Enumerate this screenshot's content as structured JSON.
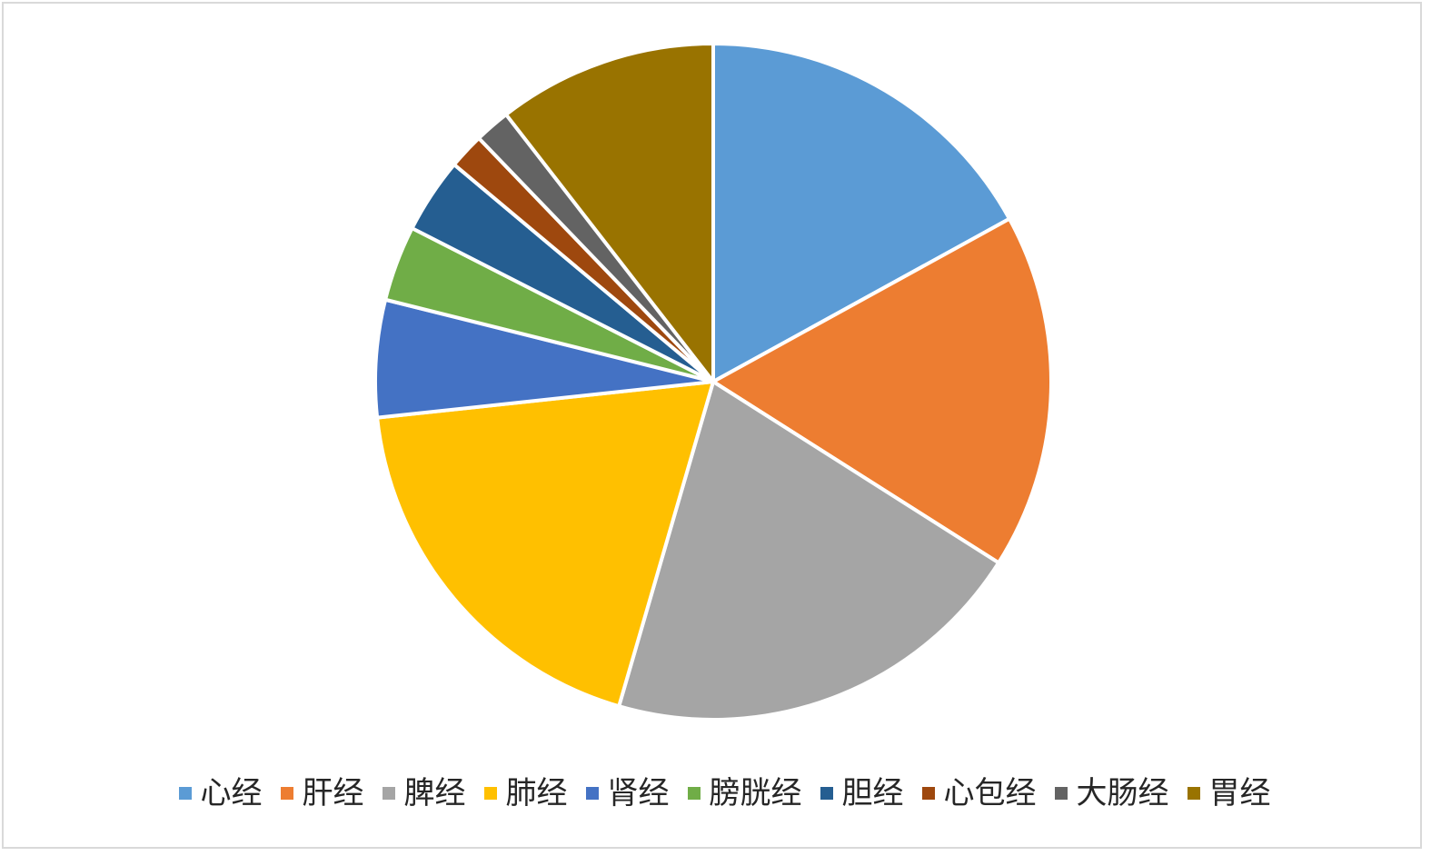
{
  "chart_data": {
    "type": "pie",
    "title": "",
    "legend_position": "bottom",
    "start_angle_deg": 0,
    "direction": "clockwise",
    "slices": [
      {
        "label": "心经",
        "value": 17.0,
        "color": "#5b9bd5"
      },
      {
        "label": "肝经",
        "value": 17.0,
        "color": "#ed7d31"
      },
      {
        "label": "脾经",
        "value": 20.5,
        "color": "#a5a5a5"
      },
      {
        "label": "肺经",
        "value": 18.8,
        "color": "#ffc000"
      },
      {
        "label": "肾经",
        "value": 5.6,
        "color": "#4472c4"
      },
      {
        "label": "膀胱经",
        "value": 3.6,
        "color": "#70ad47"
      },
      {
        "label": "胆经",
        "value": 3.6,
        "color": "#255e91"
      },
      {
        "label": "心包经",
        "value": 1.7,
        "color": "#9e480e"
      },
      {
        "label": "大肠经",
        "value": 1.7,
        "color": "#636363"
      },
      {
        "label": "胃经",
        "value": 10.5,
        "color": "#997300"
      }
    ]
  }
}
